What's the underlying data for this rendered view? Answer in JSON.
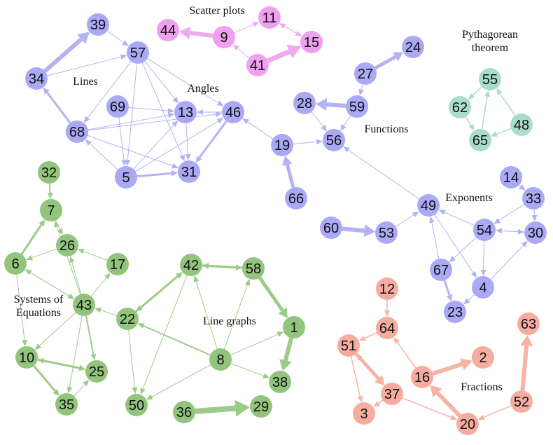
{
  "groups": [
    {
      "color": "#a9a9f5",
      "edge_color": "#b3b3f3",
      "nodes": [
        "39",
        "57",
        "34",
        "69",
        "13",
        "46",
        "68",
        "5",
        "31",
        "19",
        "66",
        "56",
        "28",
        "59",
        "27",
        "24",
        "49",
        "60",
        "53",
        "14",
        "33",
        "54",
        "30",
        "67",
        "4",
        "23"
      ]
    },
    {
      "color": "#f0a0f0",
      "edge_color": "#f0a8f0",
      "nodes": [
        "44",
        "9",
        "11",
        "15",
        "41"
      ]
    },
    {
      "color": "#a8dccb",
      "edge_color": "#a8dccb",
      "nodes": [
        "55",
        "62",
        "48",
        "65"
      ]
    },
    {
      "color": "#92c47d",
      "edge_color": "#9ccb88",
      "nodes": [
        "32",
        "7",
        "26",
        "6",
        "17",
        "43",
        "22",
        "10",
        "25",
        "35",
        "42",
        "58",
        "1",
        "8",
        "38",
        "50",
        "36",
        "29"
      ]
    },
    {
      "color": "#f6ad9f",
      "edge_color": "#f6b3a6",
      "nodes": [
        "12",
        "64",
        "51",
        "16",
        "2",
        "37",
        "3",
        "20",
        "52",
        "63"
      ]
    }
  ],
  "labels": [
    "Scatter plots",
    "Pythagorean theorem",
    "Lines",
    "Angles",
    "Functions",
    "Exponents",
    "Systems of Equations",
    "Line graphs",
    "Fractions"
  ]
}
